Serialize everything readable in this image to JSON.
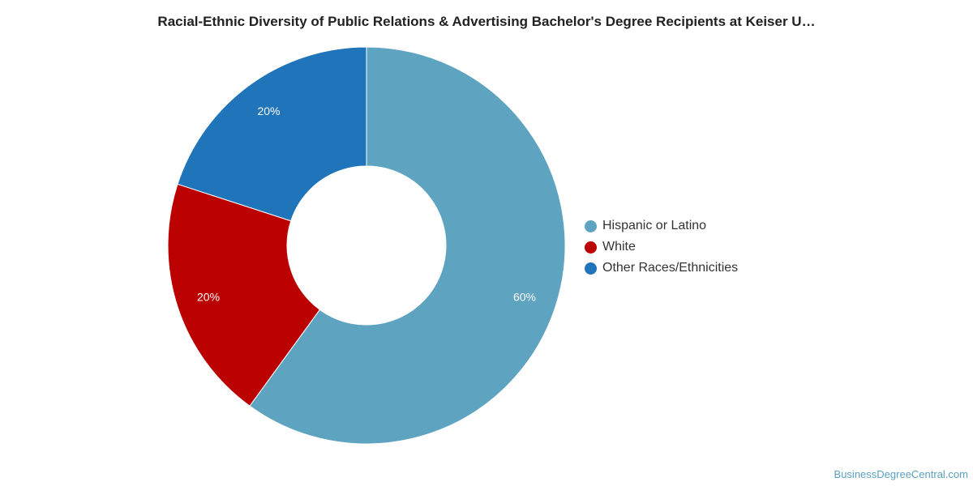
{
  "chart_data": {
    "type": "pie",
    "variant": "donut",
    "title": "Racial-Ethnic Diversity of Public Relations & Advertising Bachelor's Degree Recipients at Keiser U…",
    "categories": [
      "Hispanic or Latino",
      "White",
      "Other Races/Ethnicities"
    ],
    "values": [
      60,
      20,
      20
    ],
    "value_labels": [
      "60%",
      "20%",
      "20%"
    ],
    "colors": [
      "#5ea3bf",
      "#bb0000",
      "#1f74ba"
    ],
    "legend": "right"
  },
  "watermark": "BusinessDegreeCentral.com"
}
